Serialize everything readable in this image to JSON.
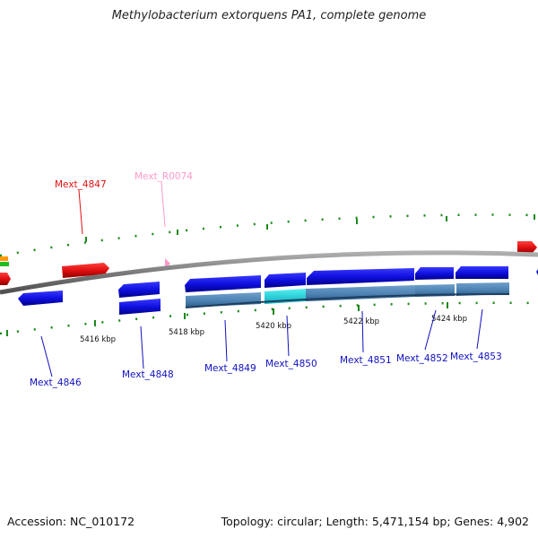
{
  "title": "Methylobacterium extorquens PA1, complete genome",
  "footer": {
    "accession": "Accession: NC_010172",
    "summary": "Topology: circular; Length: 5,471,154 bp; Genes: 4,902"
  },
  "colors": {
    "gene_blue": "#1010e0",
    "rna_red": "#e01010",
    "trna_pink": "#ff88cc",
    "cds_steel": "#4a7fb0",
    "highlight_cyan": "#20d0d8",
    "tick_green": "#1a8a1a",
    "backbone": "#808080"
  },
  "tracks": {
    "kbp_labels": [
      "5416 kbp",
      "5418 kbp",
      "5420 kbp",
      "5422 kbp",
      "5424 kbp"
    ],
    "top_genes": [
      {
        "name": "Mext_4847",
        "color": "#e01010"
      },
      {
        "name": "Mext_R0074",
        "color": "#ff99cc"
      }
    ],
    "bottom_genes": [
      {
        "name": "Mext_4846",
        "color": "#1010c0"
      },
      {
        "name": "Mext_4848",
        "color": "#1010c0"
      },
      {
        "name": "Mext_4849",
        "color": "#1010c0"
      },
      {
        "name": "Mext_4850",
        "color": "#1010c0"
      },
      {
        "name": "Mext_4851",
        "color": "#1010c0"
      },
      {
        "name": "Mext_4852",
        "color": "#1010c0"
      },
      {
        "name": "Mext_4853",
        "color": "#1010c0"
      }
    ]
  }
}
